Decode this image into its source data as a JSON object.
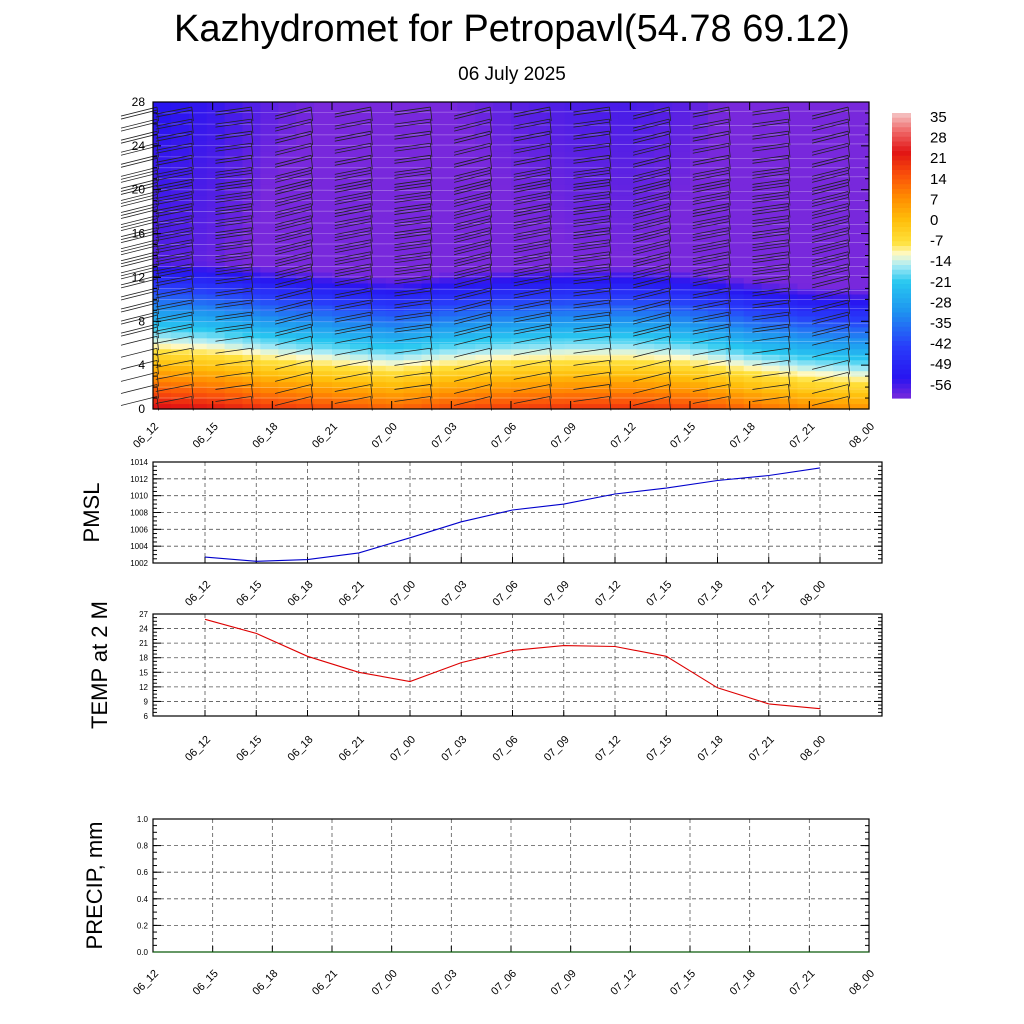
{
  "title": "Kazhydromet for Petropavl(54.78 69.12)",
  "subtitle": "06 July 2025",
  "time_labels": [
    "06_12",
    "06_15",
    "06_18",
    "06_21",
    "07_00",
    "07_03",
    "07_06",
    "07_09",
    "07_12",
    "07_15",
    "07_18",
    "07_21",
    "08_00"
  ],
  "colors": {
    "pmsl_line": "#0000cc",
    "temp_line": "#dd0000",
    "precip_line": "#006400",
    "grid": "#555555"
  },
  "chart_data": [
    {
      "type": "heatmap",
      "name": "cross-section",
      "x_labels": [
        "06_12",
        "06_15",
        "06_18",
        "06_21",
        "07_00",
        "07_03",
        "07_06",
        "07_09",
        "07_12",
        "07_15",
        "07_18",
        "07_21",
        "08_00"
      ],
      "y_ticks": [
        0,
        4,
        8,
        12,
        16,
        20,
        24,
        28
      ],
      "ylim": [
        0,
        28
      ],
      "colorbar_labels": [
        "35",
        "28",
        "21",
        "14",
        "7",
        "0",
        "-7",
        "-14",
        "-21",
        "-28",
        "-35",
        "-42",
        "-49",
        "-56"
      ],
      "colorbar_range": [
        -63,
        38
      ],
      "surface_temps": [
        26,
        24,
        20,
        17,
        14,
        17,
        19,
        20,
        20,
        18,
        13,
        9,
        7
      ],
      "lapse_rate_per_km": -6.4,
      "tropopause_km": 13,
      "tropopause_temp": -58,
      "wind_barbs": true
    },
    {
      "type": "line",
      "name": "PMSL",
      "ylabel": "PMSL",
      "x": [
        "06_12",
        "06_15",
        "06_18",
        "06_21",
        "07_00",
        "07_03",
        "07_06",
        "07_09",
        "07_12",
        "07_15",
        "07_18",
        "07_21",
        "08_00"
      ],
      "values": [
        1002.7,
        1002.2,
        1002.4,
        1003.2,
        1005.0,
        1006.9,
        1008.3,
        1009.0,
        1010.2,
        1010.9,
        1011.8,
        1012.4,
        1013.3
      ],
      "ylim": [
        1002,
        1014
      ],
      "yticks": [
        "1002",
        "1004",
        "1006",
        "1008",
        "1010",
        "1012",
        "1014"
      ],
      "grid": true
    },
    {
      "type": "line",
      "name": "TEMP at 2 M",
      "ylabel": "TEMP at 2 M",
      "x": [
        "06_12",
        "06_15",
        "06_18",
        "06_21",
        "07_00",
        "07_03",
        "07_06",
        "07_09",
        "07_12",
        "07_15",
        "07_18",
        "07_21",
        "08_00"
      ],
      "values": [
        25.9,
        23.0,
        18.3,
        15.0,
        13.1,
        17.0,
        19.5,
        20.5,
        20.3,
        18.3,
        11.8,
        8.5,
        7.5
      ],
      "ylim": [
        6,
        27
      ],
      "yticks": [
        "6",
        "9",
        "12",
        "15",
        "18",
        "21",
        "24",
        "27"
      ],
      "grid": true
    },
    {
      "type": "line",
      "name": "PRECIP, mm",
      "ylabel": "PRECIP, mm",
      "x": [
        "06_12",
        "06_15",
        "06_18",
        "06_21",
        "07_00",
        "07_03",
        "07_06",
        "07_09",
        "07_12",
        "07_15",
        "07_18",
        "07_21",
        "08_00"
      ],
      "values": [
        0,
        0,
        0,
        0,
        0,
        0,
        0,
        0,
        0,
        0,
        0,
        0,
        0
      ],
      "ylim": [
        0,
        1
      ],
      "yticks": [
        "0.0",
        "0.2",
        "0.4",
        "0.6",
        "0.8",
        "1.0"
      ],
      "grid": true
    }
  ]
}
